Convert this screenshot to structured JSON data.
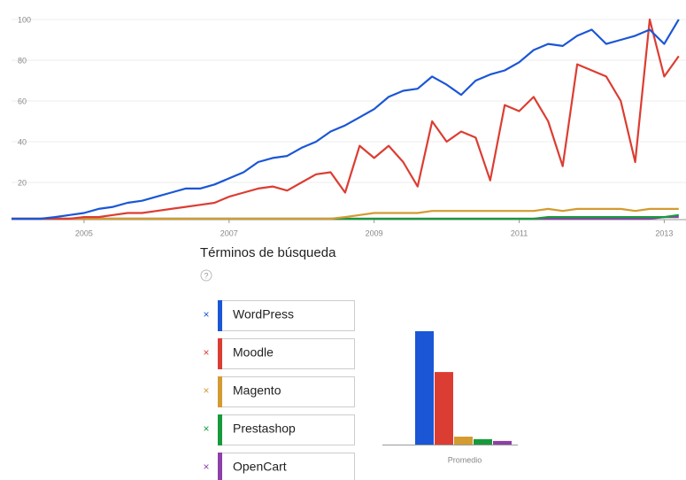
{
  "heading": "Términos de búsqueda",
  "help": "?",
  "remove_icon": "×",
  "chart_data": [
    {
      "type": "line",
      "x": [
        2004.0,
        2004.2,
        2004.4,
        2004.6,
        2004.8,
        2005.0,
        2005.2,
        2005.4,
        2005.6,
        2005.8,
        2006.0,
        2006.2,
        2006.4,
        2006.6,
        2006.8,
        2007.0,
        2007.2,
        2007.4,
        2007.6,
        2007.8,
        2008.0,
        2008.2,
        2008.4,
        2008.6,
        2008.8,
        2009.0,
        2009.2,
        2009.4,
        2009.6,
        2009.8,
        2010.0,
        2010.2,
        2010.4,
        2010.6,
        2010.8,
        2011.0,
        2011.2,
        2011.4,
        2011.6,
        2011.8,
        2012.0,
        2012.2,
        2012.4,
        2012.6,
        2012.8,
        2013.0,
        2013.2
      ],
      "xlim": [
        2004,
        2013.3
      ],
      "xticks": [
        2005,
        2007,
        2009,
        2011,
        2013
      ],
      "ylim": [
        0,
        100
      ],
      "yticks": [
        20,
        40,
        60,
        80,
        100
      ],
      "grid": true,
      "series": [
        {
          "name": "WordPress",
          "color": "#1a56d6",
          "values": [
            1,
            1,
            2,
            3,
            4,
            5,
            7,
            8,
            10,
            11,
            13,
            15,
            17,
            17,
            19,
            22,
            25,
            30,
            32,
            33,
            37,
            40,
            45,
            48,
            52,
            56,
            62,
            65,
            66,
            72,
            68,
            63,
            70,
            73,
            75,
            79,
            85,
            88,
            87,
            92,
            95,
            88,
            90,
            92,
            95,
            88,
            100
          ]
        },
        {
          "name": "Moodle",
          "color": "#dc3d32",
          "values": [
            0,
            1,
            1,
            2,
            2,
            3,
            3,
            4,
            5,
            5,
            6,
            7,
            8,
            9,
            10,
            13,
            15,
            17,
            18,
            16,
            20,
            24,
            25,
            15,
            38,
            32,
            38,
            30,
            18,
            50,
            40,
            45,
            42,
            21,
            58,
            55,
            62,
            50,
            28,
            78,
            75,
            72,
            60,
            30,
            100,
            72,
            82
          ]
        },
        {
          "name": "Magento",
          "color": "#d39b30",
          "values": [
            0,
            0,
            0,
            0,
            0,
            0,
            0,
            0,
            0,
            0,
            0,
            0,
            0,
            0,
            0,
            0,
            0,
            0,
            0,
            0,
            1,
            1,
            2,
            3,
            4,
            5,
            5,
            5,
            5,
            6,
            6,
            6,
            6,
            6,
            6,
            6,
            6,
            7,
            6,
            7,
            7,
            7,
            7,
            6,
            7,
            7,
            7
          ]
        },
        {
          "name": "Prestashop",
          "color": "#179a3c",
          "values": [
            0,
            0,
            0,
            0,
            0,
            0,
            0,
            0,
            0,
            0,
            0,
            0,
            0,
            0,
            0,
            0,
            0,
            0,
            0,
            0,
            0,
            0,
            0,
            0,
            0,
            0,
            0,
            1,
            1,
            1,
            1,
            1,
            1,
            2,
            2,
            2,
            2,
            3,
            3,
            3,
            3,
            3,
            3,
            3,
            3,
            3,
            4
          ]
        },
        {
          "name": "OpenCart",
          "color": "#8e3fa8",
          "values": [
            0,
            0,
            0,
            0,
            0,
            0,
            0,
            0,
            0,
            0,
            0,
            0,
            0,
            0,
            0,
            0,
            0,
            0,
            0,
            0,
            0,
            0,
            0,
            0,
            0,
            0,
            0,
            0,
            0,
            0,
            1,
            1,
            1,
            1,
            1,
            2,
            2,
            2,
            2,
            2,
            2,
            2,
            2,
            2,
            2,
            3,
            3
          ]
        }
      ]
    },
    {
      "type": "bar",
      "categories": [
        "Promedio"
      ],
      "series": [
        {
          "color": "#1a56d6",
          "values": [
            50
          ]
        },
        {
          "color": "#dc3d32",
          "values": [
            32
          ]
        },
        {
          "color": "#d39b30",
          "values": [
            3.5
          ]
        },
        {
          "color": "#179a3c",
          "values": [
            2.4
          ]
        },
        {
          "color": "#8e3fa8",
          "values": [
            1.6
          ]
        }
      ]
    }
  ]
}
